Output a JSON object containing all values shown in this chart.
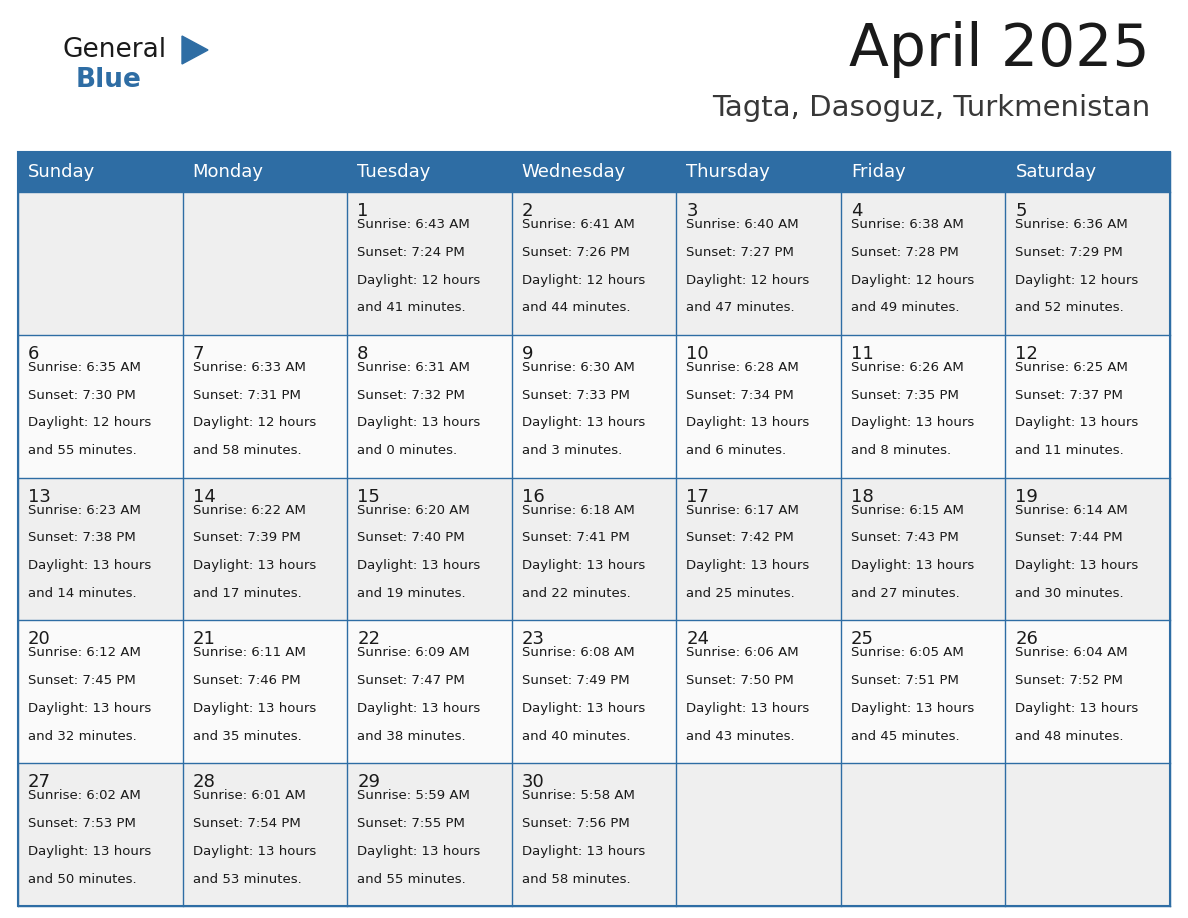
{
  "title": "April 2025",
  "subtitle": "Tagta, Dasoguz, Turkmenistan",
  "header_bg": "#2E6DA4",
  "header_text_color": "#FFFFFF",
  "cell_text_color": "#1a1a1a",
  "day_headers": [
    "Sunday",
    "Monday",
    "Tuesday",
    "Wednesday",
    "Thursday",
    "Friday",
    "Saturday"
  ],
  "weeks": [
    [
      {
        "day": "",
        "sunrise": "",
        "sunset": "",
        "daylight": ""
      },
      {
        "day": "",
        "sunrise": "",
        "sunset": "",
        "daylight": ""
      },
      {
        "day": "1",
        "sunrise": "6:43 AM",
        "sunset": "7:24 PM",
        "daylight": "12 hours and 41 minutes."
      },
      {
        "day": "2",
        "sunrise": "6:41 AM",
        "sunset": "7:26 PM",
        "daylight": "12 hours and 44 minutes."
      },
      {
        "day": "3",
        "sunrise": "6:40 AM",
        "sunset": "7:27 PM",
        "daylight": "12 hours and 47 minutes."
      },
      {
        "day": "4",
        "sunrise": "6:38 AM",
        "sunset": "7:28 PM",
        "daylight": "12 hours and 49 minutes."
      },
      {
        "day": "5",
        "sunrise": "6:36 AM",
        "sunset": "7:29 PM",
        "daylight": "12 hours and 52 minutes."
      }
    ],
    [
      {
        "day": "6",
        "sunrise": "6:35 AM",
        "sunset": "7:30 PM",
        "daylight": "12 hours and 55 minutes."
      },
      {
        "day": "7",
        "sunrise": "6:33 AM",
        "sunset": "7:31 PM",
        "daylight": "12 hours and 58 minutes."
      },
      {
        "day": "8",
        "sunrise": "6:31 AM",
        "sunset": "7:32 PM",
        "daylight": "13 hours and 0 minutes."
      },
      {
        "day": "9",
        "sunrise": "6:30 AM",
        "sunset": "7:33 PM",
        "daylight": "13 hours and 3 minutes."
      },
      {
        "day": "10",
        "sunrise": "6:28 AM",
        "sunset": "7:34 PM",
        "daylight": "13 hours and 6 minutes."
      },
      {
        "day": "11",
        "sunrise": "6:26 AM",
        "sunset": "7:35 PM",
        "daylight": "13 hours and 8 minutes."
      },
      {
        "day": "12",
        "sunrise": "6:25 AM",
        "sunset": "7:37 PM",
        "daylight": "13 hours and 11 minutes."
      }
    ],
    [
      {
        "day": "13",
        "sunrise": "6:23 AM",
        "sunset": "7:38 PM",
        "daylight": "13 hours and 14 minutes."
      },
      {
        "day": "14",
        "sunrise": "6:22 AM",
        "sunset": "7:39 PM",
        "daylight": "13 hours and 17 minutes."
      },
      {
        "day": "15",
        "sunrise": "6:20 AM",
        "sunset": "7:40 PM",
        "daylight": "13 hours and 19 minutes."
      },
      {
        "day": "16",
        "sunrise": "6:18 AM",
        "sunset": "7:41 PM",
        "daylight": "13 hours and 22 minutes."
      },
      {
        "day": "17",
        "sunrise": "6:17 AM",
        "sunset": "7:42 PM",
        "daylight": "13 hours and 25 minutes."
      },
      {
        "day": "18",
        "sunrise": "6:15 AM",
        "sunset": "7:43 PM",
        "daylight": "13 hours and 27 minutes."
      },
      {
        "day": "19",
        "sunrise": "6:14 AM",
        "sunset": "7:44 PM",
        "daylight": "13 hours and 30 minutes."
      }
    ],
    [
      {
        "day": "20",
        "sunrise": "6:12 AM",
        "sunset": "7:45 PM",
        "daylight": "13 hours and 32 minutes."
      },
      {
        "day": "21",
        "sunrise": "6:11 AM",
        "sunset": "7:46 PM",
        "daylight": "13 hours and 35 minutes."
      },
      {
        "day": "22",
        "sunrise": "6:09 AM",
        "sunset": "7:47 PM",
        "daylight": "13 hours and 38 minutes."
      },
      {
        "day": "23",
        "sunrise": "6:08 AM",
        "sunset": "7:49 PM",
        "daylight": "13 hours and 40 minutes."
      },
      {
        "day": "24",
        "sunrise": "6:06 AM",
        "sunset": "7:50 PM",
        "daylight": "13 hours and 43 minutes."
      },
      {
        "day": "25",
        "sunrise": "6:05 AM",
        "sunset": "7:51 PM",
        "daylight": "13 hours and 45 minutes."
      },
      {
        "day": "26",
        "sunrise": "6:04 AM",
        "sunset": "7:52 PM",
        "daylight": "13 hours and 48 minutes."
      }
    ],
    [
      {
        "day": "27",
        "sunrise": "6:02 AM",
        "sunset": "7:53 PM",
        "daylight": "13 hours and 50 minutes."
      },
      {
        "day": "28",
        "sunrise": "6:01 AM",
        "sunset": "7:54 PM",
        "daylight": "13 hours and 53 minutes."
      },
      {
        "day": "29",
        "sunrise": "5:59 AM",
        "sunset": "7:55 PM",
        "daylight": "13 hours and 55 minutes."
      },
      {
        "day": "30",
        "sunrise": "5:58 AM",
        "sunset": "7:56 PM",
        "daylight": "13 hours and 58 minutes."
      },
      {
        "day": "",
        "sunrise": "",
        "sunset": "",
        "daylight": ""
      },
      {
        "day": "",
        "sunrise": "",
        "sunset": "",
        "daylight": ""
      },
      {
        "day": "",
        "sunrise": "",
        "sunset": "",
        "daylight": ""
      }
    ]
  ],
  "logo_text1": "General",
  "logo_text2": "Blue",
  "logo_color1": "#1a1a1a",
  "logo_color2": "#2E6DA4",
  "logo_triangle_color": "#2E6DA4",
  "border_color": "#2E6DA4",
  "row_bg_colors": [
    "#EFEFEF",
    "#FAFAFA",
    "#EFEFEF",
    "#FAFAFA",
    "#EFEFEF"
  ]
}
